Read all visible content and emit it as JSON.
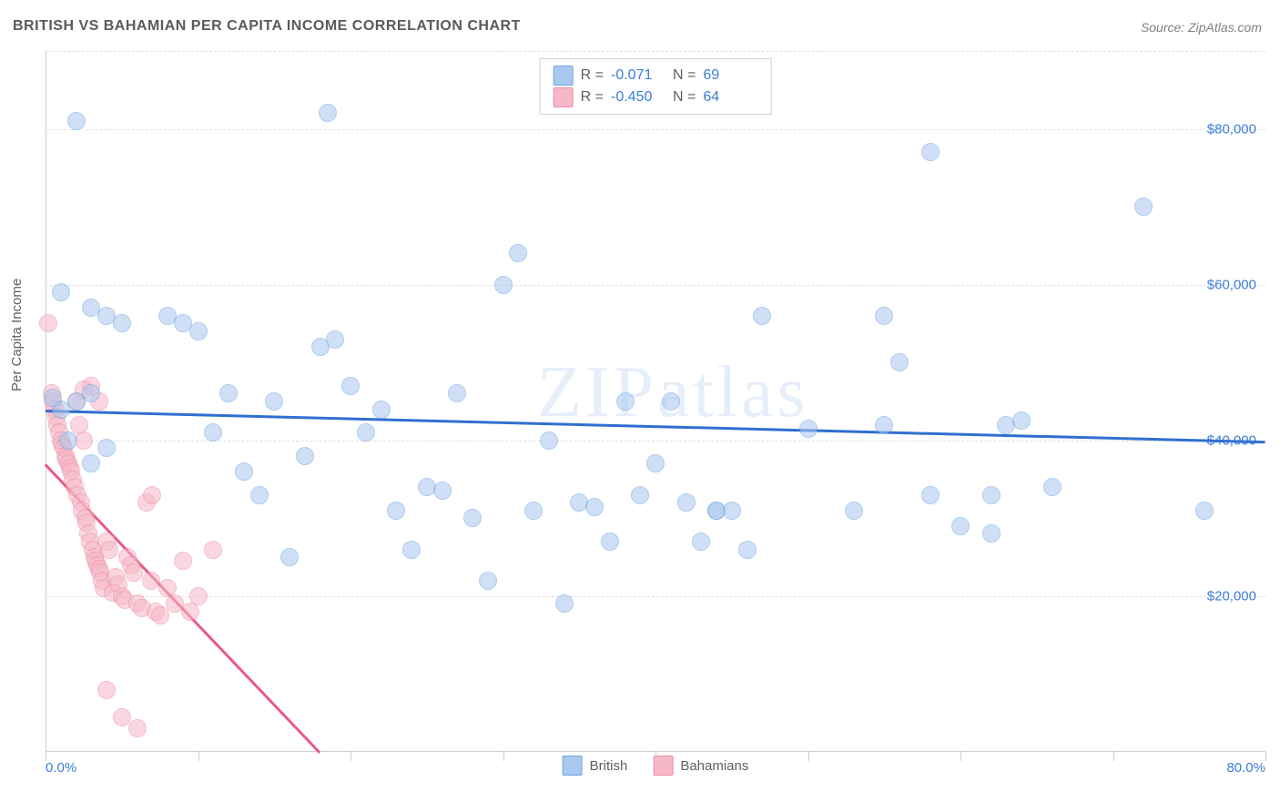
{
  "title": "BRITISH VS BAHAMIAN PER CAPITA INCOME CORRELATION CHART",
  "source": "Source: ZipAtlas.com",
  "ylabel": "Per Capita Income",
  "watermark": "ZIPatlas",
  "chart": {
    "type": "scatter",
    "xlim": [
      0,
      80
    ],
    "ylim": [
      0,
      90000
    ],
    "xlim_labels": [
      "0.0%",
      "80.0%"
    ],
    "y_ticks": [
      20000,
      40000,
      60000,
      80000
    ],
    "y_tick_labels": [
      "$20,000",
      "$40,000",
      "$60,000",
      "$80,000"
    ],
    "x_tick_positions": [
      0,
      10,
      20,
      30,
      40,
      50,
      60,
      70,
      80
    ],
    "background_color": "#ffffff",
    "grid_color": "#e0e0e0",
    "axis_color": "#cfcfcf",
    "marker_radius": 10,
    "marker_border_width": 1.2,
    "marker_fill_opacity": 0.28,
    "series": [
      {
        "name": "British",
        "fill": "#a9c8ef",
        "stroke": "#6fa3e0",
        "R": "-0.071",
        "N": "69",
        "trend": {
          "x1": 0,
          "y1": 44000,
          "x2": 80,
          "y2": 40000,
          "color": "#2f6fd0",
          "width": 3
        },
        "points": [
          [
            18.5,
            82000
          ],
          [
            1,
            59000
          ],
          [
            2,
            81000
          ],
          [
            3,
            57000
          ],
          [
            4,
            56000
          ],
          [
            5,
            55000
          ],
          [
            58,
            77000
          ],
          [
            2,
            45000
          ],
          [
            3,
            46000
          ],
          [
            1,
            44000
          ],
          [
            0.5,
            45500
          ],
          [
            1.5,
            40000
          ],
          [
            4,
            39000
          ],
          [
            3,
            37000
          ],
          [
            8,
            56000
          ],
          [
            9,
            55000
          ],
          [
            10,
            54000
          ],
          [
            11,
            41000
          ],
          [
            12,
            46000
          ],
          [
            13,
            36000
          ],
          [
            14,
            33000
          ],
          [
            15,
            45000
          ],
          [
            16,
            25000
          ],
          [
            17,
            38000
          ],
          [
            18,
            52000
          ],
          [
            19,
            53000
          ],
          [
            20,
            47000
          ],
          [
            21,
            41000
          ],
          [
            22,
            44000
          ],
          [
            23,
            31000
          ],
          [
            24,
            26000
          ],
          [
            25,
            34000
          ],
          [
            26,
            33500
          ],
          [
            27,
            46000
          ],
          [
            28,
            30000
          ],
          [
            29,
            22000
          ],
          [
            30,
            60000
          ],
          [
            31,
            64000
          ],
          [
            32,
            31000
          ],
          [
            33,
            40000
          ],
          [
            34,
            19000
          ],
          [
            35,
            32000
          ],
          [
            36,
            31500
          ],
          [
            37,
            27000
          ],
          [
            38,
            45000
          ],
          [
            39,
            33000
          ],
          [
            40,
            37000
          ],
          [
            41,
            45000
          ],
          [
            42,
            32000
          ],
          [
            43,
            27000
          ],
          [
            44,
            31000
          ],
          [
            44,
            31000
          ],
          [
            45,
            31000
          ],
          [
            46,
            26000
          ],
          [
            47,
            56000
          ],
          [
            50,
            41500
          ],
          [
            53,
            31000
          ],
          [
            55,
            42000
          ],
          [
            55,
            56000
          ],
          [
            56,
            50000
          ],
          [
            58,
            33000
          ],
          [
            60,
            29000
          ],
          [
            62,
            33000
          ],
          [
            62,
            28000
          ],
          [
            63,
            42000
          ],
          [
            64,
            42500
          ],
          [
            66,
            34000
          ],
          [
            72,
            70000
          ],
          [
            76,
            31000
          ]
        ]
      },
      {
        "name": "Bahamians",
        "fill": "#f6b8c7",
        "stroke": "#eb8ba4",
        "R": "-0.450",
        "N": "64",
        "trend": {
          "x1": 0,
          "y1": 37000,
          "x2": 18,
          "y2": 0,
          "color": "#e85a86",
          "width": 2.5
        },
        "points": [
          [
            0.2,
            55000
          ],
          [
            0.4,
            46000
          ],
          [
            0.5,
            45000
          ],
          [
            0.6,
            44000
          ],
          [
            0.7,
            43000
          ],
          [
            0.8,
            42000
          ],
          [
            0.9,
            41000
          ],
          [
            1,
            40000
          ],
          [
            1.1,
            39500
          ],
          [
            1.2,
            39000
          ],
          [
            1.3,
            38000
          ],
          [
            1.4,
            37500
          ],
          [
            1.5,
            37000
          ],
          [
            1.6,
            36500
          ],
          [
            1.7,
            36000
          ],
          [
            1.8,
            35000
          ],
          [
            1.9,
            34000
          ],
          [
            2,
            45000
          ],
          [
            2.1,
            33000
          ],
          [
            2.2,
            42000
          ],
          [
            2.3,
            32000
          ],
          [
            2.4,
            31000
          ],
          [
            2.5,
            40000
          ],
          [
            2.6,
            30000
          ],
          [
            2.7,
            29500
          ],
          [
            2.8,
            28000
          ],
          [
            2.9,
            27000
          ],
          [
            3,
            47000
          ],
          [
            3.1,
            26000
          ],
          [
            3.2,
            25000
          ],
          [
            3.3,
            24500
          ],
          [
            3.4,
            24000
          ],
          [
            3.5,
            23500
          ],
          [
            3.6,
            23000
          ],
          [
            3.7,
            22000
          ],
          [
            3.8,
            21000
          ],
          [
            4,
            27000
          ],
          [
            4.2,
            26000
          ],
          [
            4.4,
            20500
          ],
          [
            4.6,
            22500
          ],
          [
            4.8,
            21500
          ],
          [
            5,
            20000
          ],
          [
            5.2,
            19500
          ],
          [
            5.4,
            25000
          ],
          [
            5.6,
            24000
          ],
          [
            5.8,
            23000
          ],
          [
            6,
            19000
          ],
          [
            6.3,
            18500
          ],
          [
            6.6,
            32000
          ],
          [
            6.9,
            22000
          ],
          [
            7.2,
            18000
          ],
          [
            7.5,
            17500
          ],
          [
            8,
            21000
          ],
          [
            8.5,
            19000
          ],
          [
            9,
            24500
          ],
          [
            9.5,
            18000
          ],
          [
            10,
            20000
          ],
          [
            7,
            33000
          ],
          [
            3.5,
            45000
          ],
          [
            2.5,
            46500
          ],
          [
            11,
            26000
          ],
          [
            6,
            3000
          ],
          [
            5,
            4500
          ],
          [
            4,
            8000
          ]
        ]
      }
    ]
  },
  "legend": {
    "items": [
      {
        "label": "British",
        "fill": "#a9c8ef",
        "stroke": "#6fa3e0"
      },
      {
        "label": "Bahamians",
        "fill": "#f6b8c7",
        "stroke": "#eb8ba4"
      }
    ]
  }
}
